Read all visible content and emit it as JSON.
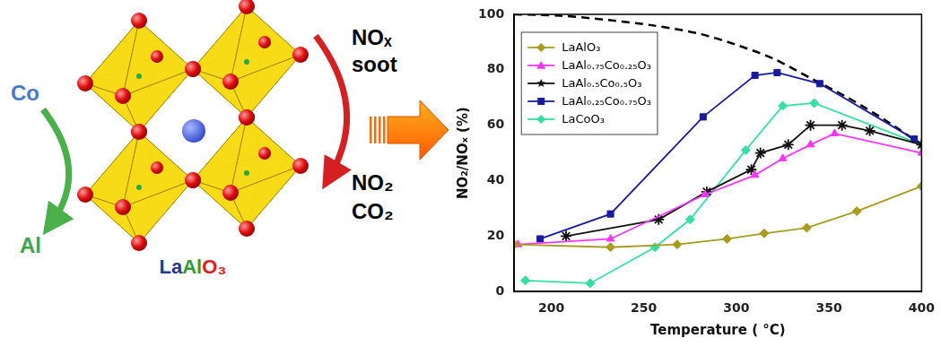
{
  "chart_data": {
    "type": "line",
    "x_label": "Temperature ( °C)",
    "y_label": "NO₂/NOₓ (%)",
    "xlim": [
      180,
      400
    ],
    "xticks": [
      200,
      250,
      300,
      350,
      400
    ],
    "ylim": [
      0,
      100
    ],
    "yticks": [
      0,
      20,
      40,
      60,
      80,
      100
    ],
    "grid": false,
    "legend": "upper left",
    "series": [
      {
        "name": "LaAlO₃",
        "color": "#a59d1e",
        "marker": "diamond",
        "x": [
          180,
          232,
          268,
          295,
          315,
          338,
          365,
          400
        ],
        "values": [
          17,
          16,
          17,
          19,
          21,
          23,
          29,
          38
        ]
      },
      {
        "name": "LaAl₀.₇₅Co₀.₂₅O₃",
        "color": "#ff33ff",
        "marker": "triangle",
        "x": [
          182,
          232,
          283,
          310,
          325,
          340,
          353,
          400
        ],
        "values": [
          17,
          19,
          35,
          42,
          48,
          53,
          57,
          50
        ]
      },
      {
        "name": "LaAl₀.₅Co₀.₅O₃",
        "color": "#111111",
        "marker": "star",
        "x": [
          208,
          258,
          284,
          308,
          313,
          328,
          340,
          357,
          372,
          400
        ],
        "values": [
          20,
          26,
          36,
          44,
          50,
          53,
          60,
          60,
          58,
          53
        ]
      },
      {
        "name": "LaAl₀.₂₅Co₀.₇₅O₃",
        "color": "#1a1aa0",
        "marker": "square",
        "x": [
          194,
          232,
          282,
          310,
          322,
          345,
          396
        ],
        "values": [
          19,
          28,
          63,
          78,
          79,
          75,
          55
        ]
      },
      {
        "name": "LaCoO₃",
        "color": "#33e0a0",
        "marker": "diamond",
        "x": [
          186,
          221,
          256,
          275,
          305,
          325,
          342,
          400
        ],
        "values": [
          4,
          3,
          16,
          26,
          51,
          67,
          68,
          53
        ]
      },
      {
        "color": "#000000",
        "marker": "none",
        "line_style": "dashed",
        "x": [
          180,
          205,
          230,
          255,
          280,
          300,
          320,
          340,
          360,
          380,
          400
        ],
        "values": [
          100,
          99.5,
          98,
          96,
          93,
          89,
          84,
          77,
          70,
          62,
          53
        ]
      }
    ]
  },
  "diagram": {
    "left_arrow": {
      "from": {
        "text": "Co",
        "color": "#4a78cc"
      },
      "to": {
        "text": "Al",
        "color": "#3aa64a"
      }
    },
    "right_arrow": {
      "from": [
        "NOₓ",
        "soot"
      ],
      "to": [
        "NO₂",
        "CO₂"
      ]
    },
    "crystal_label": [
      {
        "text": "La",
        "color": "#1f3b8f"
      },
      {
        "text": "Al",
        "color": "#2e9c3c"
      },
      {
        "text": "O₃",
        "color": "#e02020"
      }
    ]
  }
}
